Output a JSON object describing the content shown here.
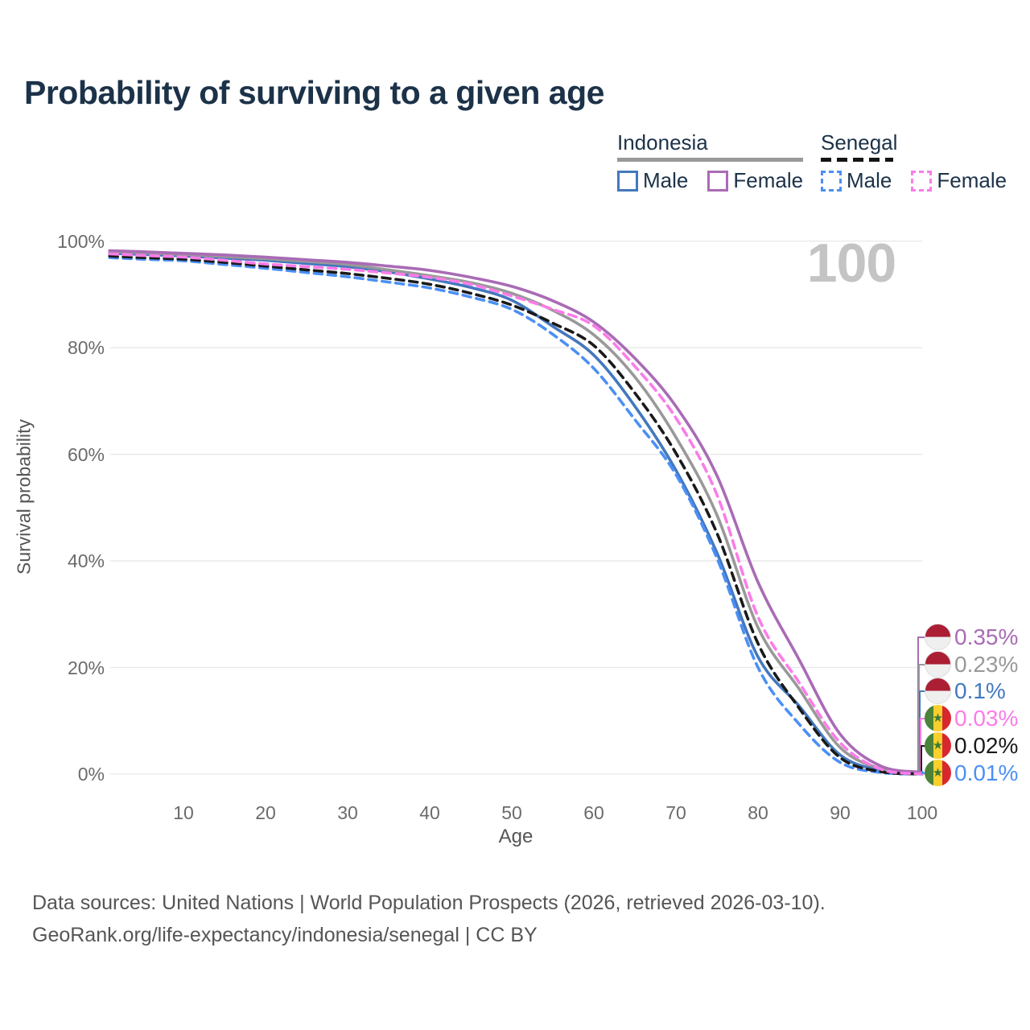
{
  "title": "Probability of surviving to a given age",
  "watermark": "100",
  "colors": {
    "title_text": "#1c3249",
    "grid": "#e8e8e8",
    "axis_text": "#6b6b6b",
    "indonesia_male": "#4478be",
    "indonesia_female": "#a96bb5",
    "indonesia_total": "#999999",
    "senegal_male": "#4b90f5",
    "senegal_female": "#fb7ce8",
    "senegal_total": "#1a1a1a"
  },
  "legend": {
    "groups": [
      {
        "label": "Indonesia",
        "rule_style": "solid",
        "rule_color": "#999999",
        "items": [
          {
            "label": "Male",
            "color": "#4478be",
            "dash": false
          },
          {
            "label": "Female",
            "color": "#a96bb5",
            "dash": false
          }
        ]
      },
      {
        "label": "Senegal",
        "rule_style": "dashed",
        "rule_color": "#141414",
        "items": [
          {
            "label": "Male",
            "color": "#4b90f5",
            "dash": true
          },
          {
            "label": "Female",
            "color": "#fb7ce8",
            "dash": true
          }
        ]
      }
    ]
  },
  "chart_data": {
    "type": "line",
    "title": "Probability of surviving to a given age",
    "xlabel": "Age",
    "ylabel": "Survival probability",
    "xlim": [
      1,
      100
    ],
    "ylim": [
      0,
      100
    ],
    "grid": "horizontal",
    "legend_position": "top-right",
    "x_ticks": [
      10,
      20,
      30,
      40,
      50,
      60,
      70,
      80,
      90,
      100
    ],
    "y_ticks": [
      0,
      20,
      40,
      60,
      80,
      100
    ],
    "y_tick_labels": [
      "0%",
      "20%",
      "40%",
      "60%",
      "80%",
      "100%"
    ],
    "x": [
      1,
      5,
      10,
      15,
      20,
      25,
      30,
      35,
      40,
      45,
      50,
      55,
      60,
      65,
      70,
      75,
      80,
      85,
      90,
      95,
      100
    ],
    "series": [
      {
        "name": "Indonesia Female",
        "country": "Indonesia",
        "sex": "Female",
        "color": "#a96bb5",
        "dash": false,
        "end_label": "0.35%",
        "values": [
          98.2,
          98.0,
          97.7,
          97.4,
          97.0,
          96.5,
          96.0,
          95.3,
          94.5,
          93.2,
          91.5,
          88.8,
          84.8,
          78.0,
          69.0,
          56.0,
          36.0,
          21.5,
          7.5,
          1.5,
          0.35
        ]
      },
      {
        "name": "Indonesia",
        "country": "Indonesia",
        "sex": "Both",
        "color": "#999999",
        "dash": false,
        "end_label": "0.23%",
        "values": [
          98.0,
          97.8,
          97.5,
          97.1,
          96.7,
          96.2,
          95.6,
          94.6,
          93.5,
          92.2,
          90.2,
          87.0,
          82.4,
          74.5,
          63.2,
          48.6,
          27.5,
          16.0,
          5.0,
          1.0,
          0.23
        ]
      },
      {
        "name": "Indonesia Male",
        "country": "Indonesia",
        "sex": "Male",
        "color": "#4478be",
        "dash": false,
        "end_label": "0.1%",
        "values": [
          97.7,
          97.5,
          97.2,
          96.8,
          96.4,
          95.8,
          95.2,
          94.2,
          92.9,
          91.3,
          88.9,
          84.0,
          78.6,
          69.0,
          57.0,
          41.5,
          22.0,
          12.8,
          3.6,
          0.7,
          0.1
        ]
      },
      {
        "name": "Senegal Female",
        "country": "Senegal",
        "sex": "Female",
        "color": "#fb7ce8",
        "dash": true,
        "end_label": "0.03%",
        "values": [
          97.6,
          97.3,
          97.0,
          96.4,
          95.7,
          95.2,
          94.7,
          94.0,
          93.2,
          91.9,
          89.7,
          87.2,
          84.1,
          76.5,
          66.8,
          52.4,
          29.5,
          17.2,
          5.9,
          0.9,
          0.03
        ]
      },
      {
        "name": "Senegal",
        "country": "Senegal",
        "sex": "Both",
        "color": "#1a1a1a",
        "dash": true,
        "end_label": "0.02%",
        "values": [
          97.2,
          96.9,
          96.6,
          96.0,
          95.3,
          94.6,
          93.9,
          93.0,
          91.9,
          90.2,
          88.0,
          84.6,
          80.4,
          71.5,
          60.2,
          45.2,
          24.5,
          12.4,
          3.1,
          0.45,
          0.02
        ]
      },
      {
        "name": "Senegal Male",
        "country": "Senegal",
        "sex": "Male",
        "color": "#4b90f5",
        "dash": true,
        "end_label": "0.01%",
        "values": [
          96.9,
          96.6,
          96.3,
          95.6,
          94.9,
          94.1,
          93.3,
          92.3,
          91.2,
          89.5,
          87.2,
          82.5,
          76.1,
          66.5,
          56.2,
          40.5,
          20.0,
          9.4,
          2.2,
          0.3,
          0.01
        ]
      }
    ],
    "end_labels": [
      {
        "text": "0.35%",
        "series_index": 0,
        "flag": "indonesia",
        "color": "#a96bb5"
      },
      {
        "text": "0.23%",
        "series_index": 1,
        "flag": "indonesia",
        "color": "#999999"
      },
      {
        "text": "0.1%",
        "series_index": 2,
        "flag": "indonesia",
        "color": "#4478be"
      },
      {
        "text": "0.03%",
        "series_index": 3,
        "flag": "senegal",
        "color": "#fb7ce8"
      },
      {
        "text": "0.02%",
        "series_index": 4,
        "flag": "senegal",
        "color": "#1a1a1a"
      },
      {
        "text": "0.01%",
        "series_index": 5,
        "flag": "senegal",
        "color": "#4b90f5"
      }
    ]
  },
  "icons": {
    "senegal_star": "★"
  },
  "footer": {
    "line1": "Data sources: United Nations | World Population Prospects (2026, retrieved 2026-03-10).",
    "line2": "GeoRank.org/life-expectancy/indonesia/senegal | CC BY"
  }
}
